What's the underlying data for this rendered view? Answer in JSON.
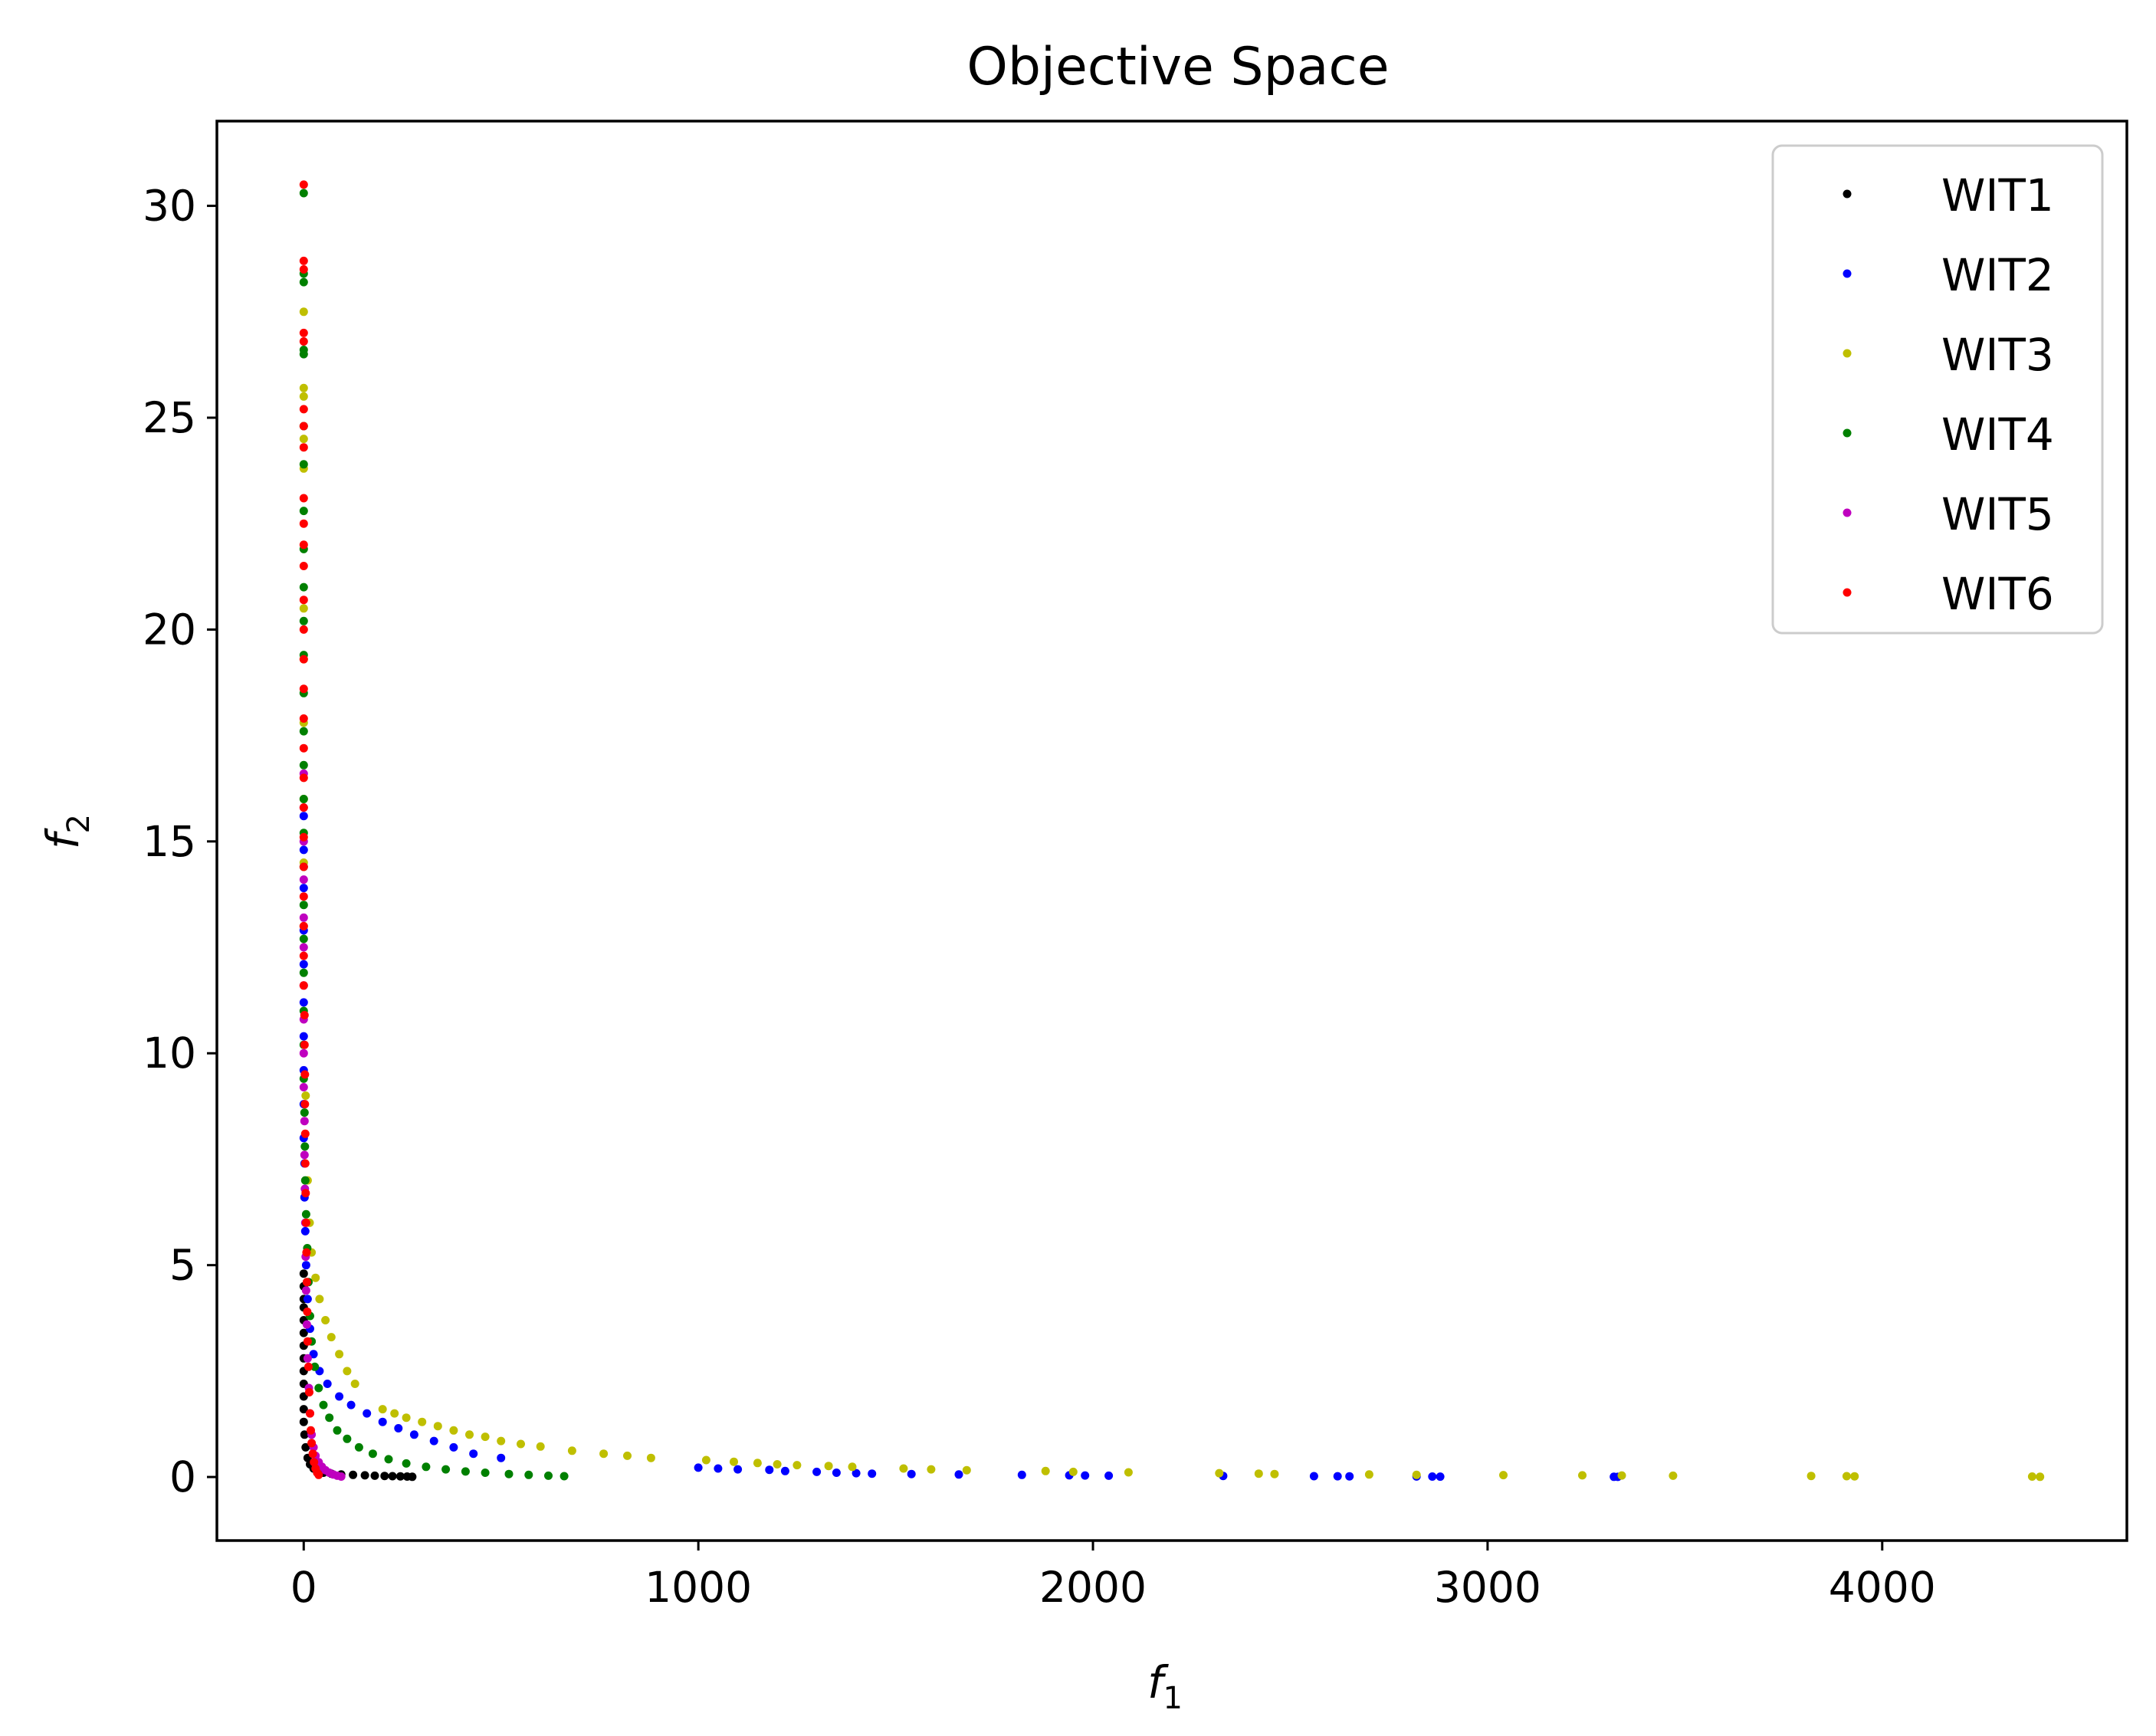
{
  "chart_data": {
    "type": "scatter",
    "title": "Objective Space",
    "xlabel": "f",
    "xlabel_sub": "1",
    "ylabel": "f",
    "ylabel_sub": "2",
    "xlim": [
      -220,
      4620
    ],
    "ylim": [
      -1.5,
      32.0
    ],
    "xticks": [
      0,
      1000,
      2000,
      3000,
      4000
    ],
    "yticks": [
      0,
      5,
      10,
      15,
      20,
      25,
      30
    ],
    "grid": false,
    "legend": "top-right",
    "series": [
      {
        "name": "WIT1",
        "color": "#000000",
        "points": [
          [
            0,
            4.8
          ],
          [
            0,
            4.5
          ],
          [
            0,
            4.2
          ],
          [
            0,
            4.0
          ],
          [
            0,
            3.7
          ],
          [
            0,
            3.4
          ],
          [
            0,
            3.1
          ],
          [
            0,
            2.8
          ],
          [
            0,
            2.5
          ],
          [
            0,
            2.2
          ],
          [
            0,
            1.9
          ],
          [
            0,
            1.6
          ],
          [
            0,
            1.3
          ],
          [
            2,
            1.0
          ],
          [
            5,
            0.7
          ],
          [
            10,
            0.45
          ],
          [
            16,
            0.3
          ],
          [
            25,
            0.2
          ],
          [
            35,
            0.14
          ],
          [
            50,
            0.1
          ],
          [
            70,
            0.08
          ],
          [
            95,
            0.06
          ],
          [
            125,
            0.05
          ],
          [
            155,
            0.04
          ],
          [
            180,
            0.03
          ],
          [
            205,
            0.025
          ],
          [
            225,
            0.02
          ],
          [
            245,
            0.015
          ],
          [
            262,
            0.01
          ],
          [
            275,
            0.005
          ]
        ]
      },
      {
        "name": "WIT2",
        "color": "#0000ff",
        "points": [
          [
            0,
            15.6
          ],
          [
            0,
            14.8
          ],
          [
            0,
            13.9
          ],
          [
            0,
            12.9
          ],
          [
            0,
            12.1
          ],
          [
            0,
            11.2
          ],
          [
            0,
            10.4
          ],
          [
            0,
            9.6
          ],
          [
            0,
            8.8
          ],
          [
            0,
            8.0
          ],
          [
            2,
            7.4
          ],
          [
            2,
            6.6
          ],
          [
            4,
            5.8
          ],
          [
            6,
            5.0
          ],
          [
            10,
            4.2
          ],
          [
            16,
            3.5
          ],
          [
            25,
            2.9
          ],
          [
            40,
            2.5
          ],
          [
            60,
            2.2
          ],
          [
            90,
            1.9
          ],
          [
            120,
            1.7
          ],
          [
            160,
            1.5
          ],
          [
            200,
            1.3
          ],
          [
            240,
            1.15
          ],
          [
            280,
            1.0
          ],
          [
            330,
            0.85
          ],
          [
            380,
            0.7
          ],
          [
            430,
            0.55
          ],
          [
            500,
            0.45
          ],
          [
            1000,
            0.22
          ],
          [
            1050,
            0.2
          ],
          [
            1100,
            0.18
          ],
          [
            1180,
            0.17
          ],
          [
            1220,
            0.14
          ],
          [
            1300,
            0.12
          ],
          [
            1350,
            0.1
          ],
          [
            1400,
            0.09
          ],
          [
            1440,
            0.08
          ],
          [
            1540,
            0.07
          ],
          [
            1660,
            0.06
          ],
          [
            1820,
            0.05
          ],
          [
            1940,
            0.04
          ],
          [
            1980,
            0.035
          ],
          [
            2040,
            0.03
          ],
          [
            2330,
            0.025
          ],
          [
            2560,
            0.02
          ],
          [
            2620,
            0.018
          ],
          [
            2650,
            0.015
          ],
          [
            2820,
            0.012
          ],
          [
            2860,
            0.01
          ],
          [
            2880,
            0.008
          ],
          [
            3320,
            0.005
          ],
          [
            3330,
            0.003
          ]
        ]
      },
      {
        "name": "WIT3",
        "color": "#bfbf00",
        "points": [
          [
            0,
            27.5
          ],
          [
            0,
            25.7
          ],
          [
            0,
            25.5
          ],
          [
            0,
            24.5
          ],
          [
            0,
            23.8
          ],
          [
            0,
            20.5
          ],
          [
            0,
            19.3
          ],
          [
            0,
            17.8
          ],
          [
            0,
            16.0
          ],
          [
            0,
            14.5
          ],
          [
            0,
            13.0
          ],
          [
            5,
            9.0
          ],
          [
            10,
            7.0
          ],
          [
            15,
            6.0
          ],
          [
            20,
            5.3
          ],
          [
            30,
            4.7
          ],
          [
            40,
            4.2
          ],
          [
            55,
            3.7
          ],
          [
            70,
            3.3
          ],
          [
            90,
            2.9
          ],
          [
            110,
            2.5
          ],
          [
            130,
            2.2
          ],
          [
            200,
            1.6
          ],
          [
            230,
            1.5
          ],
          [
            260,
            1.4
          ],
          [
            300,
            1.3
          ],
          [
            340,
            1.2
          ],
          [
            380,
            1.1
          ],
          [
            420,
            1.0
          ],
          [
            460,
            0.95
          ],
          [
            500,
            0.85
          ],
          [
            550,
            0.78
          ],
          [
            600,
            0.72
          ],
          [
            680,
            0.62
          ],
          [
            760,
            0.55
          ],
          [
            820,
            0.5
          ],
          [
            880,
            0.45
          ],
          [
            1020,
            0.4
          ],
          [
            1090,
            0.36
          ],
          [
            1150,
            0.33
          ],
          [
            1200,
            0.3
          ],
          [
            1250,
            0.28
          ],
          [
            1330,
            0.26
          ],
          [
            1390,
            0.24
          ],
          [
            1520,
            0.2
          ],
          [
            1590,
            0.18
          ],
          [
            1680,
            0.16
          ],
          [
            1880,
            0.14
          ],
          [
            1950,
            0.12
          ],
          [
            2090,
            0.11
          ],
          [
            2320,
            0.09
          ],
          [
            2420,
            0.08
          ],
          [
            2460,
            0.07
          ],
          [
            2700,
            0.06
          ],
          [
            2820,
            0.05
          ],
          [
            3040,
            0.045
          ],
          [
            3240,
            0.04
          ],
          [
            3340,
            0.035
          ],
          [
            3470,
            0.03
          ],
          [
            3820,
            0.025
          ],
          [
            3910,
            0.02
          ],
          [
            3930,
            0.015
          ],
          [
            4380,
            0.01
          ],
          [
            4400,
            0.005
          ]
        ]
      },
      {
        "name": "WIT4",
        "color": "#008000",
        "points": [
          [
            0,
            30.3
          ],
          [
            0,
            28.4
          ],
          [
            0,
            28.2
          ],
          [
            0,
            26.6
          ],
          [
            0,
            26.5
          ],
          [
            0,
            24.8
          ],
          [
            0,
            23.9
          ],
          [
            0,
            22.8
          ],
          [
            0,
            21.9
          ],
          [
            0,
            21.0
          ],
          [
            0,
            20.2
          ],
          [
            0,
            19.4
          ],
          [
            0,
            18.5
          ],
          [
            0,
            17.6
          ],
          [
            0,
            16.8
          ],
          [
            0,
            16.0
          ],
          [
            0,
            15.2
          ],
          [
            0,
            14.4
          ],
          [
            0,
            13.5
          ],
          [
            0,
            12.7
          ],
          [
            0,
            11.9
          ],
          [
            0,
            11.0
          ],
          [
            0,
            10.2
          ],
          [
            0,
            9.4
          ],
          [
            2,
            8.6
          ],
          [
            3,
            7.8
          ],
          [
            4,
            7.0
          ],
          [
            6,
            6.2
          ],
          [
            9,
            5.4
          ],
          [
            12,
            4.6
          ],
          [
            16,
            3.8
          ],
          [
            20,
            3.2
          ],
          [
            28,
            2.6
          ],
          [
            38,
            2.1
          ],
          [
            50,
            1.7
          ],
          [
            65,
            1.4
          ],
          [
            85,
            1.1
          ],
          [
            110,
            0.9
          ],
          [
            140,
            0.7
          ],
          [
            175,
            0.55
          ],
          [
            215,
            0.42
          ],
          [
            260,
            0.32
          ],
          [
            310,
            0.24
          ],
          [
            360,
            0.18
          ],
          [
            410,
            0.13
          ],
          [
            460,
            0.1
          ],
          [
            520,
            0.07
          ],
          [
            570,
            0.05
          ],
          [
            620,
            0.03
          ],
          [
            660,
            0.02
          ]
        ]
      },
      {
        "name": "WIT5",
        "color": "#bf00bf",
        "points": [
          [
            0,
            16.6
          ],
          [
            0,
            15.8
          ],
          [
            0,
            15.0
          ],
          [
            0,
            14.1
          ],
          [
            0,
            13.2
          ],
          [
            0,
            12.5
          ],
          [
            0,
            11.6
          ],
          [
            0,
            10.8
          ],
          [
            0,
            10.0
          ],
          [
            0,
            9.2
          ],
          [
            2,
            8.4
          ],
          [
            2,
            7.6
          ],
          [
            3,
            6.8
          ],
          [
            4,
            6.0
          ],
          [
            5,
            5.2
          ],
          [
            6,
            4.4
          ],
          [
            8,
            3.6
          ],
          [
            10,
            2.8
          ],
          [
            13,
            2.1
          ],
          [
            16,
            1.5
          ],
          [
            20,
            1.0
          ],
          [
            25,
            0.7
          ],
          [
            30,
            0.5
          ],
          [
            38,
            0.35
          ],
          [
            46,
            0.24
          ],
          [
            55,
            0.16
          ],
          [
            65,
            0.1
          ],
          [
            75,
            0.06
          ],
          [
            85,
            0.03
          ],
          [
            95,
            0.01
          ]
        ]
      },
      {
        "name": "WIT6",
        "color": "#ff0000",
        "points": [
          [
            0,
            30.5
          ],
          [
            0,
            28.7
          ],
          [
            0,
            28.5
          ],
          [
            0,
            27.0
          ],
          [
            0,
            26.8
          ],
          [
            0,
            25.2
          ],
          [
            0,
            24.8
          ],
          [
            0,
            24.3
          ],
          [
            0,
            23.1
          ],
          [
            0,
            22.5
          ],
          [
            0,
            22.0
          ],
          [
            0,
            21.5
          ],
          [
            0,
            20.7
          ],
          [
            0,
            20.0
          ],
          [
            0,
            19.3
          ],
          [
            0,
            18.6
          ],
          [
            0,
            17.9
          ],
          [
            0,
            17.2
          ],
          [
            0,
            16.5
          ],
          [
            0,
            15.8
          ],
          [
            0,
            15.1
          ],
          [
            0,
            14.4
          ],
          [
            0,
            13.7
          ],
          [
            0,
            13.0
          ],
          [
            0,
            12.3
          ],
          [
            0,
            11.6
          ],
          [
            2,
            10.9
          ],
          [
            2,
            10.2
          ],
          [
            3,
            9.5
          ],
          [
            3,
            8.8
          ],
          [
            4,
            8.1
          ],
          [
            4,
            7.4
          ],
          [
            5,
            6.7
          ],
          [
            6,
            6.0
          ],
          [
            7,
            5.3
          ],
          [
            8,
            4.6
          ],
          [
            9,
            3.9
          ],
          [
            10,
            3.2
          ],
          [
            12,
            2.6
          ],
          [
            14,
            2.0
          ],
          [
            16,
            1.5
          ],
          [
            18,
            1.1
          ],
          [
            20,
            0.8
          ],
          [
            23,
            0.55
          ],
          [
            26,
            0.35
          ],
          [
            30,
            0.2
          ],
          [
            34,
            0.1
          ],
          [
            38,
            0.05
          ]
        ]
      }
    ]
  }
}
